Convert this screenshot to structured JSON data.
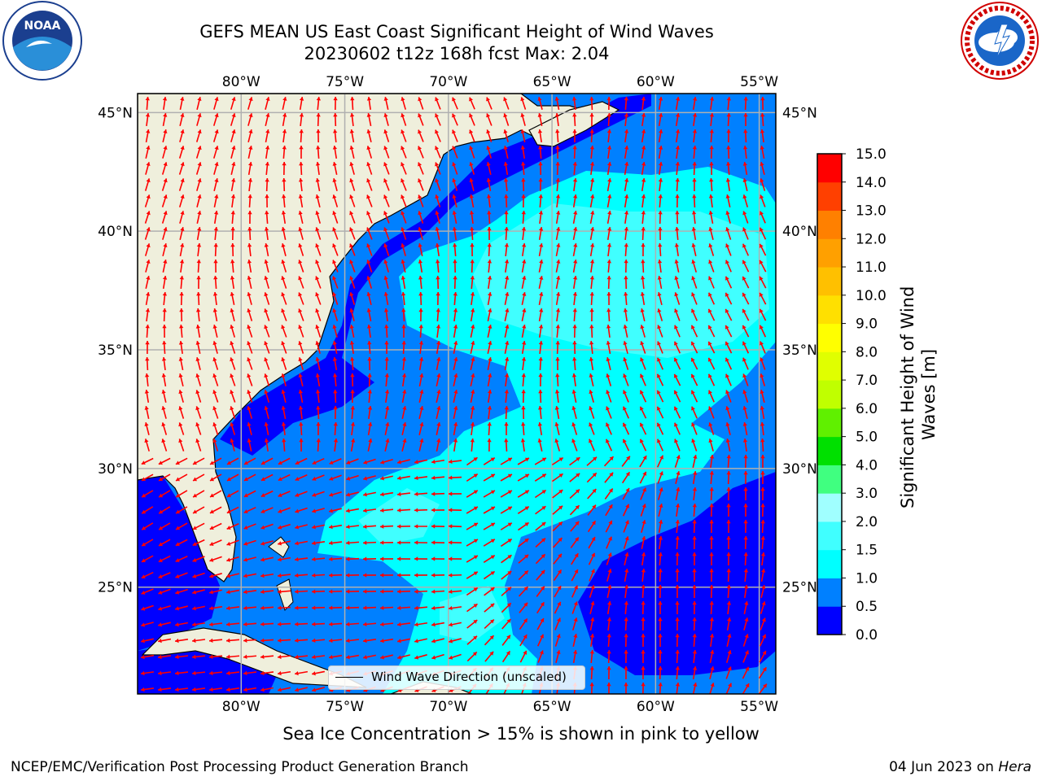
{
  "title": {
    "line1": "GEFS MEAN US East Coast Significant Height of Wind Waves",
    "line2": "20230602 t12z 168h fcst   Max: 2.04"
  },
  "logos": {
    "left": {
      "text": "NOAA",
      "icon": "noaa-logo-icon"
    },
    "right": {
      "icon": "nws-logo-icon"
    }
  },
  "map": {
    "lon_ticks": [
      "80°W",
      "75°W",
      "70°W",
      "65°W",
      "60°W",
      "55°W"
    ],
    "lat_ticks": [
      "45°N",
      "40°N",
      "35°N",
      "30°N",
      "25°N"
    ],
    "lon_values": [
      -80,
      -75,
      -70,
      -65,
      -60,
      -55
    ],
    "lat_values": [
      45,
      40,
      35,
      30,
      25
    ],
    "extent": {
      "lon_min": -85,
      "lon_max": -54.2,
      "lat_min": 20.5,
      "lat_max": 45.8
    },
    "legend_label": "Wind Wave Direction (unscaled)",
    "colors": {
      "land": "#efefdc",
      "grid": "#b0b0b0",
      "arrow": "#ff0000"
    }
  },
  "colorbar": {
    "label_line1": "Significant Height of Wind",
    "label_line2": "Waves [m]",
    "ticks": [
      "0.0",
      "0.5",
      "1.0",
      "1.5",
      "2.0",
      "3.0",
      "4.0",
      "5.0",
      "6.0",
      "7.0",
      "8.0",
      "9.0",
      "10.0",
      "11.0",
      "12.0",
      "13.0",
      "14.0",
      "15.0"
    ],
    "colors": [
      "#0000ff",
      "#0080ff",
      "#00ffff",
      "#40ffff",
      "#a0ffff",
      "#40ff80",
      "#00e000",
      "#60f000",
      "#c0ff00",
      "#e0ff00",
      "#ffff00",
      "#ffe000",
      "#ffc000",
      "#ffa000",
      "#ff8000",
      "#ff4000",
      "#ff0000"
    ]
  },
  "footer": {
    "note": "Sea Ice Concentration > 15% is shown in pink to yellow",
    "left": "NCEP/EMC/Verification Post Processing Product Generation Branch",
    "right_date": "04 Jun 2023 on ",
    "right_host": "Hera"
  }
}
